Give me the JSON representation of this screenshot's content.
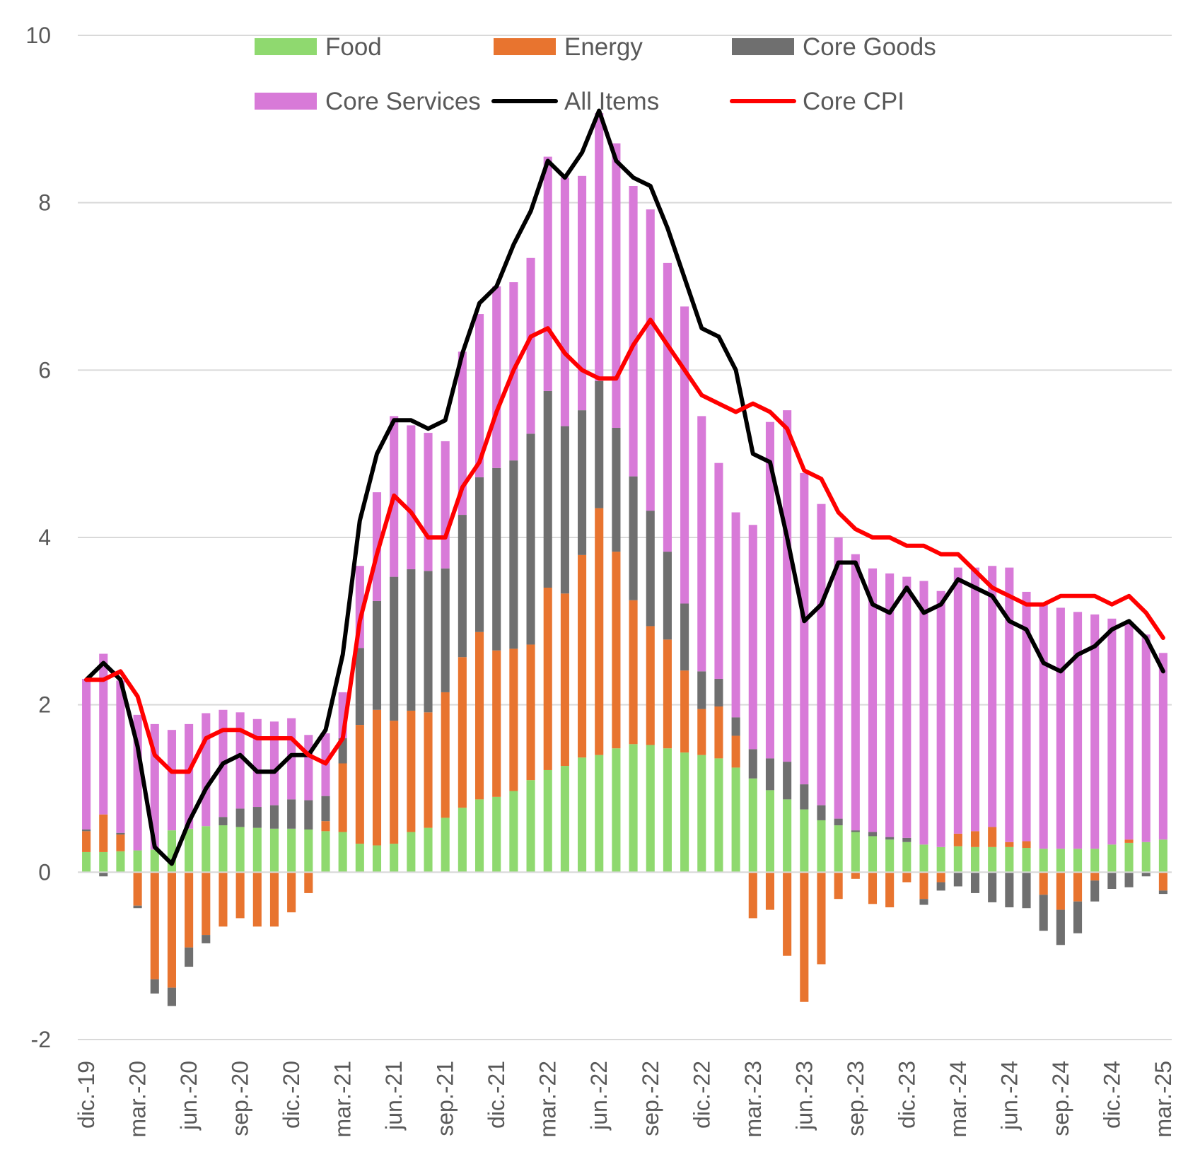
{
  "chart_data": {
    "type": "bar",
    "stacked": true,
    "title": "",
    "xlabel": "",
    "ylabel": "",
    "ylim": [
      -2,
      10
    ],
    "yticks": [
      10,
      8,
      6,
      4,
      2,
      0,
      -2
    ],
    "ytick_labels": [
      "10",
      "8",
      "6",
      "4",
      "2",
      "0",
      "-2"
    ],
    "grid": "horizontal",
    "legend_position": "top",
    "categories": [
      "dic.-19",
      "ene.-20",
      "feb.-20",
      "mar.-20",
      "abr.-20",
      "may.-20",
      "jun.-20",
      "jul.-20",
      "ago.-20",
      "sep.-20",
      "oct.-20",
      "nov.-20",
      "dic.-20",
      "ene.-21",
      "feb.-21",
      "mar.-21",
      "abr.-21",
      "may.-21",
      "jun.-21",
      "jul.-21",
      "ago.-21",
      "sep.-21",
      "oct.-21",
      "nov.-21",
      "dic.-21",
      "ene.-22",
      "feb.-22",
      "mar.-22",
      "abr.-22",
      "may.-22",
      "jun.-22",
      "jul.-22",
      "ago.-22",
      "sep.-22",
      "oct.-22",
      "nov.-22",
      "dic.-22",
      "ene.-23",
      "feb.-23",
      "mar.-23",
      "abr.-23",
      "may.-23",
      "jun.-23",
      "jul.-23",
      "ago.-23",
      "sep.-23",
      "oct.-23",
      "nov.-23",
      "dic.-23",
      "ene.-24",
      "feb.-24",
      "mar.-24",
      "abr.-24",
      "may.-24",
      "jun.-24",
      "jul.-24",
      "ago.-24",
      "sep.-24",
      "oct.-24",
      "nov.-24",
      "dic.-24",
      "ene.-25",
      "feb.-25",
      "mar.-25"
    ],
    "visible_x_labels": [
      "dic.-19",
      "mar.-20",
      "jun.-20",
      "sep.-20",
      "dic.-20",
      "mar.-21",
      "jun.-21",
      "sep.-21",
      "dic.-21",
      "mar.-22",
      "jun.-22",
      "sep.-22",
      "dic.-22",
      "mar.-23",
      "jun.-23",
      "sep.-23",
      "dic.-23",
      "mar.-24",
      "jun.-24",
      "sep.-24",
      "dic.-24",
      "mar.-25"
    ],
    "bar_series": [
      {
        "name": "Food",
        "color": "#8FD96F",
        "values": [
          0.24,
          0.24,
          0.25,
          0.26,
          0.27,
          0.5,
          0.52,
          0.55,
          0.56,
          0.54,
          0.53,
          0.52,
          0.52,
          0.51,
          0.49,
          0.48,
          0.34,
          0.32,
          0.34,
          0.48,
          0.53,
          0.65,
          0.77,
          0.87,
          0.9,
          0.97,
          1.1,
          1.22,
          1.27,
          1.37,
          1.4,
          1.48,
          1.53,
          1.52,
          1.48,
          1.43,
          1.4,
          1.36,
          1.25,
          1.12,
          0.98,
          0.87,
          0.75,
          0.62,
          0.56,
          0.48,
          0.43,
          0.39,
          0.36,
          0.33,
          0.3,
          0.31,
          0.3,
          0.3,
          0.3,
          0.29,
          0.28,
          0.28,
          0.28,
          0.28,
          0.33,
          0.35,
          0.36,
          0.39
        ]
      },
      {
        "name": "Energy",
        "color": "#E8742F",
        "values": [
          0.25,
          0.45,
          0.2,
          -0.4,
          -1.28,
          -1.38,
          -0.9,
          -0.75,
          -0.65,
          -0.55,
          -0.65,
          -0.65,
          -0.48,
          -0.25,
          0.12,
          0.82,
          1.42,
          1.62,
          1.47,
          1.45,
          1.38,
          1.5,
          1.8,
          2.0,
          1.75,
          1.7,
          1.62,
          2.18,
          2.06,
          2.42,
          2.95,
          2.35,
          1.72,
          1.42,
          1.3,
          0.98,
          0.55,
          0.62,
          0.38,
          -0.55,
          -0.45,
          -1.0,
          -1.55,
          -1.1,
          -0.32,
          -0.08,
          -0.38,
          -0.42,
          -0.12,
          -0.32,
          -0.12,
          0.15,
          0.19,
          0.24,
          0.06,
          0.08,
          -0.27,
          -0.45,
          -0.35,
          -0.1,
          0.0,
          0.04,
          0.0,
          -0.22
        ]
      },
      {
        "name": "Core Goods",
        "color": "#6F6F6F",
        "values": [
          0.02,
          -0.05,
          0.02,
          -0.03,
          -0.17,
          -0.22,
          -0.23,
          -0.1,
          0.1,
          0.22,
          0.25,
          0.28,
          0.35,
          0.35,
          0.3,
          0.3,
          0.92,
          1.3,
          1.72,
          1.69,
          1.69,
          1.48,
          1.7,
          1.85,
          2.18,
          2.25,
          2.52,
          2.35,
          2.0,
          1.73,
          1.52,
          1.48,
          1.48,
          1.38,
          1.05,
          0.8,
          0.45,
          0.33,
          0.22,
          0.35,
          0.38,
          0.45,
          0.3,
          0.18,
          0.08,
          0.02,
          0.05,
          0.03,
          0.05,
          -0.07,
          -0.1,
          -0.17,
          -0.25,
          -0.36,
          -0.42,
          -0.43,
          -0.43,
          -0.42,
          -0.38,
          -0.25,
          -0.2,
          -0.18,
          -0.05,
          -0.04
        ]
      },
      {
        "name": "Core Services",
        "color": "#D87AD8",
        "values": [
          1.8,
          1.92,
          1.82,
          1.62,
          1.5,
          1.2,
          1.25,
          1.35,
          1.28,
          1.15,
          1.05,
          1.0,
          0.97,
          0.78,
          0.75,
          0.55,
          0.98,
          1.3,
          1.92,
          1.72,
          1.65,
          1.52,
          1.95,
          1.95,
          2.17,
          2.13,
          2.1,
          2.8,
          2.97,
          2.8,
          3.2,
          3.4,
          3.47,
          3.6,
          3.45,
          3.55,
          3.05,
          2.58,
          2.45,
          2.68,
          4.02,
          4.2,
          3.72,
          3.6,
          3.36,
          3.3,
          3.15,
          3.15,
          3.12,
          3.15,
          3.06,
          3.18,
          3.15,
          3.12,
          3.28,
          2.98,
          2.93,
          2.88,
          2.83,
          2.8,
          2.7,
          2.6,
          2.48,
          2.23
        ]
      }
    ],
    "line_series": [
      {
        "name": "All Items",
        "color": "#000000",
        "values": [
          2.3,
          2.5,
          2.3,
          1.5,
          0.3,
          0.1,
          0.6,
          1.0,
          1.3,
          1.4,
          1.2,
          1.2,
          1.4,
          1.4,
          1.7,
          2.6,
          4.2,
          5.0,
          5.4,
          5.4,
          5.3,
          5.4,
          6.2,
          6.8,
          7.0,
          7.5,
          7.9,
          8.5,
          8.3,
          8.6,
          9.1,
          8.5,
          8.3,
          8.2,
          7.7,
          7.1,
          6.5,
          6.4,
          6.0,
          5.0,
          4.9,
          4.0,
          3.0,
          3.2,
          3.7,
          3.7,
          3.2,
          3.1,
          3.4,
          3.1,
          3.2,
          3.5,
          3.4,
          3.3,
          3.0,
          2.9,
          2.5,
          2.4,
          2.6,
          2.7,
          2.9,
          3.0,
          2.8,
          2.4
        ]
      },
      {
        "name": "Core CPI",
        "color": "#FF0000",
        "values": [
          2.3,
          2.3,
          2.4,
          2.1,
          1.4,
          1.2,
          1.2,
          1.6,
          1.7,
          1.7,
          1.6,
          1.6,
          1.6,
          1.4,
          1.3,
          1.6,
          3.0,
          3.8,
          4.5,
          4.3,
          4.0,
          4.0,
          4.6,
          4.9,
          5.5,
          6.0,
          6.4,
          6.5,
          6.2,
          6.0,
          5.9,
          5.9,
          6.3,
          6.6,
          6.3,
          6.0,
          5.7,
          5.6,
          5.5,
          5.6,
          5.5,
          5.3,
          4.8,
          4.7,
          4.3,
          4.1,
          4.0,
          4.0,
          3.9,
          3.9,
          3.8,
          3.8,
          3.6,
          3.4,
          3.3,
          3.2,
          3.2,
          3.3,
          3.3,
          3.3,
          3.2,
          3.3,
          3.1,
          2.8
        ]
      }
    ]
  },
  "legend": {
    "items": [
      {
        "label": "Food",
        "kind": "bar",
        "color": "#8FD96F"
      },
      {
        "label": "Energy",
        "kind": "bar",
        "color": "#E8742F"
      },
      {
        "label": "Core Goods",
        "kind": "bar",
        "color": "#6F6F6F"
      },
      {
        "label": "Core Services",
        "kind": "bar",
        "color": "#D87AD8"
      },
      {
        "label": "All Items",
        "kind": "line",
        "color": "#000000"
      },
      {
        "label": "Core CPI",
        "kind": "line",
        "color": "#FF0000"
      }
    ]
  },
  "colors": {
    "gridline": "#D9D9D9",
    "tick_text": "#595959",
    "background": "#FFFFFF"
  }
}
